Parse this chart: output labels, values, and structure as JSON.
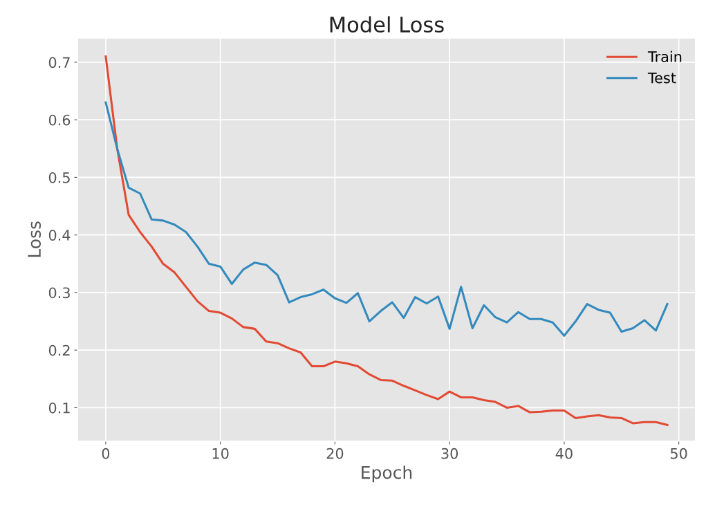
{
  "chart_data": {
    "type": "line",
    "title": "Model Loss",
    "xlabel": "Epoch",
    "ylabel": "Loss",
    "x": [
      0,
      1,
      2,
      3,
      4,
      5,
      6,
      7,
      8,
      9,
      10,
      11,
      12,
      13,
      14,
      15,
      16,
      17,
      18,
      19,
      20,
      21,
      22,
      23,
      24,
      25,
      26,
      27,
      28,
      29,
      30,
      31,
      32,
      33,
      34,
      35,
      36,
      37,
      38,
      39,
      40,
      41,
      42,
      43,
      44,
      45,
      46,
      47,
      48,
      49
    ],
    "series": [
      {
        "name": "Train",
        "color": "#e24a33",
        "values": [
          0.71,
          0.55,
          0.435,
          0.405,
          0.38,
          0.35,
          0.335,
          0.31,
          0.285,
          0.268,
          0.265,
          0.255,
          0.24,
          0.237,
          0.215,
          0.212,
          0.203,
          0.196,
          0.172,
          0.172,
          0.18,
          0.177,
          0.172,
          0.158,
          0.148,
          0.147,
          0.138,
          0.13,
          0.122,
          0.115,
          0.128,
          0.118,
          0.118,
          0.113,
          0.11,
          0.1,
          0.103,
          0.092,
          0.093,
          0.095,
          0.095,
          0.082,
          0.085,
          0.087,
          0.083,
          0.082,
          0.073,
          0.075,
          0.075,
          0.07
        ]
      },
      {
        "name": "Test",
        "color": "#348abd",
        "values": [
          0.63,
          0.55,
          0.482,
          0.472,
          0.427,
          0.425,
          0.418,
          0.405,
          0.38,
          0.35,
          0.345,
          0.315,
          0.34,
          0.352,
          0.348,
          0.33,
          0.283,
          0.292,
          0.297,
          0.305,
          0.29,
          0.282,
          0.299,
          0.25,
          0.268,
          0.283,
          0.256,
          0.292,
          0.281,
          0.293,
          0.237,
          0.31,
          0.238,
          0.278,
          0.257,
          0.248,
          0.266,
          0.254,
          0.254,
          0.248,
          0.225,
          0.25,
          0.28,
          0.27,
          0.265,
          0.232,
          0.238,
          0.252,
          0.234,
          0.28
        ]
      }
    ],
    "xlim": [
      -2.45,
      51.45
    ],
    "xticks": [
      0,
      10,
      20,
      30,
      40,
      50
    ],
    "ylim": [
      0.042,
      0.742
    ],
    "yticks": [
      0.1,
      0.2,
      0.3,
      0.4,
      0.5,
      0.6,
      0.7
    ],
    "grid": true,
    "legend": "top right"
  }
}
